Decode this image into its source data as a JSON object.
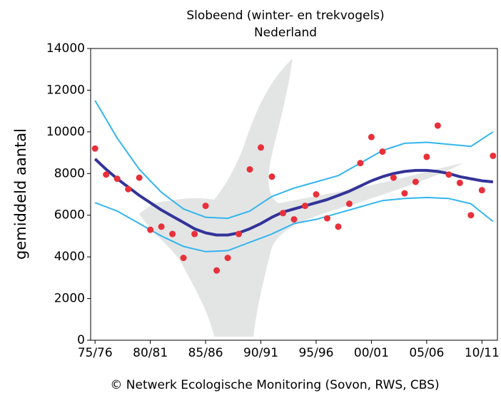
{
  "chart_data": {
    "type": "scatter-trend",
    "title": "Slobeend (winter- en trekvogels)",
    "subtitle": "Nederland",
    "y_label": "gemiddeld aantal",
    "footer": "© Netwerk Ecologische Monitoring (Sovon, RWS, CBS)",
    "categories": [
      "75/76",
      null,
      null,
      null,
      null,
      "80/81",
      null,
      null,
      null,
      null,
      "85/86",
      null,
      null,
      null,
      null,
      "90/91",
      null,
      null,
      null,
      null,
      "95/96",
      null,
      null,
      null,
      null,
      "00/01",
      null,
      null,
      null,
      null,
      "05/06",
      null,
      null,
      null,
      null,
      "10/11",
      null
    ],
    "ylim": [
      0,
      14000
    ],
    "yticks": [
      0,
      2000,
      4000,
      6000,
      8000,
      10000,
      12000,
      14000
    ],
    "grid": false,
    "series": [
      {
        "name": "upper",
        "kind": "line",
        "color": "#33b5ee",
        "width": 2,
        "values": [
          11500,
          10600,
          9700,
          8950,
          8200,
          7650,
          7100,
          6700,
          6300,
          6100,
          5900,
          5875,
          5850,
          6025,
          6200,
          6550,
          6900,
          7100,
          7300,
          7450,
          7600,
          7750,
          7900,
          8200,
          8500,
          8800,
          9100,
          9275,
          9450,
          9475,
          9500,
          9450,
          9400,
          9350,
          9300,
          9650,
          10000
        ]
      },
      {
        "name": "lower",
        "kind": "line",
        "color": "#33b5ee",
        "width": 2,
        "values": [
          6600,
          6400,
          6200,
          5900,
          5600,
          5300,
          5000,
          4750,
          4500,
          4375,
          4250,
          4275,
          4300,
          4500,
          4700,
          4900,
          5100,
          5350,
          5600,
          5700,
          5800,
          5950,
          6100,
          6250,
          6400,
          6550,
          6700,
          6750,
          6800,
          6825,
          6850,
          6825,
          6800,
          6675,
          6550,
          6125,
          5700
        ]
      },
      {
        "name": "trend",
        "kind": "line",
        "color": "#333399",
        "width": 4,
        "values": [
          8700,
          8200,
          7750,
          7350,
          6950,
          6600,
          6250,
          5950,
          5650,
          5350,
          5150,
          5050,
          5050,
          5150,
          5350,
          5600,
          5900,
          6150,
          6300,
          6450,
          6600,
          6750,
          6950,
          7150,
          7400,
          7650,
          7850,
          8000,
          8100,
          8150,
          8150,
          8100,
          8000,
          7850,
          7750,
          7650,
          7600
        ]
      },
      {
        "name": "counts",
        "kind": "points",
        "color": "#e8303a",
        "values": [
          9200,
          7950,
          7750,
          7250,
          7800,
          5300,
          5450,
          5100,
          3950,
          5100,
          6450,
          3350,
          3950,
          5100,
          8200,
          9250,
          7850,
          6100,
          5800,
          6450,
          7000,
          5850,
          5450,
          6550,
          8500,
          9750,
          9050,
          7800,
          7050,
          7600,
          8800,
          10300,
          7950,
          7550,
          6000,
          7200,
          8850
        ]
      }
    ]
  }
}
